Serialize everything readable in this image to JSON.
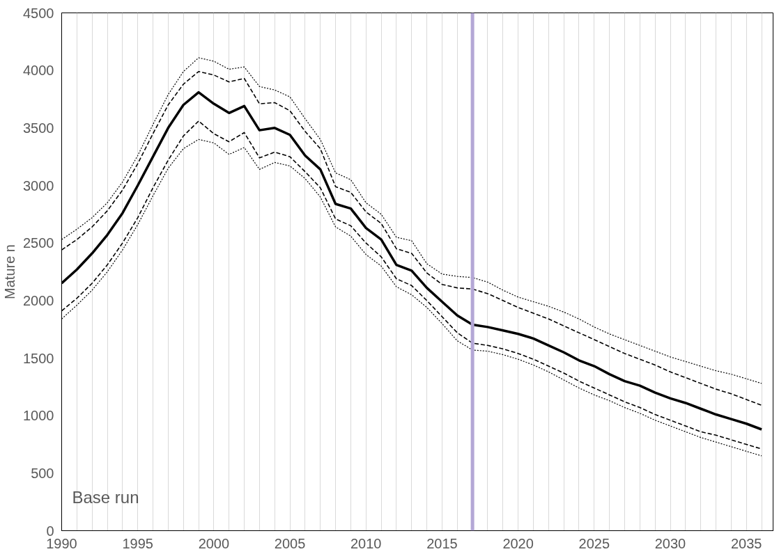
{
  "chart_data": {
    "type": "line",
    "ylabel": "Mature n",
    "annotations": [
      "Base run"
    ],
    "x": [
      1990,
      1991,
      1992,
      1993,
      1994,
      1995,
      1996,
      1997,
      1998,
      1999,
      2000,
      2001,
      2002,
      2003,
      2004,
      2005,
      2006,
      2007,
      2008,
      2009,
      2010,
      2011,
      2012,
      2013,
      2014,
      2015,
      2016,
      2017,
      2018,
      2019,
      2020,
      2021,
      2022,
      2023,
      2024,
      2025,
      2026,
      2027,
      2028,
      2029,
      2030,
      2031,
      2032,
      2033,
      2034,
      2035,
      2036
    ],
    "series": [
      {
        "color": "#000000",
        "line_style": "dotted",
        "values": [
          2530,
          2620,
          2720,
          2850,
          3030,
          3260,
          3530,
          3790,
          3990,
          4110,
          4080,
          4010,
          4030,
          3860,
          3830,
          3770,
          3580,
          3400,
          3110,
          3050,
          2850,
          2750,
          2550,
          2520,
          2320,
          2230,
          2210,
          2200,
          2160,
          2090,
          2030,
          1990,
          1950,
          1900,
          1840,
          1770,
          1710,
          1660,
          1610,
          1560,
          1510,
          1470,
          1430,
          1390,
          1360,
          1320,
          1280
        ]
      },
      {
        "color": "#000000",
        "line_style": "dashed",
        "values": [
          2440,
          2530,
          2640,
          2780,
          2960,
          3190,
          3450,
          3700,
          3880,
          3990,
          3960,
          3900,
          3930,
          3710,
          3720,
          3650,
          3470,
          3320,
          2990,
          2940,
          2770,
          2670,
          2450,
          2410,
          2240,
          2140,
          2110,
          2100,
          2060,
          2000,
          1940,
          1890,
          1840,
          1780,
          1720,
          1660,
          1600,
          1540,
          1490,
          1440,
          1380,
          1330,
          1280,
          1230,
          1190,
          1140,
          1090
        ]
      },
      {
        "color": "#000000",
        "line_style": "solid",
        "values": [
          2150,
          2270,
          2410,
          2570,
          2760,
          3000,
          3250,
          3500,
          3700,
          3810,
          3710,
          3630,
          3690,
          3480,
          3500,
          3440,
          3260,
          3140,
          2840,
          2800,
          2630,
          2530,
          2310,
          2260,
          2110,
          1990,
          1870,
          1790,
          1770,
          1740,
          1710,
          1670,
          1610,
          1550,
          1480,
          1430,
          1360,
          1300,
          1260,
          1200,
          1150,
          1110,
          1060,
          1010,
          970,
          930,
          880
        ]
      },
      {
        "color": "#000000",
        "line_style": "dashed",
        "values": [
          1910,
          2020,
          2150,
          2310,
          2500,
          2720,
          2980,
          3220,
          3430,
          3560,
          3450,
          3380,
          3460,
          3240,
          3290,
          3250,
          3120,
          2980,
          2710,
          2650,
          2500,
          2380,
          2190,
          2130,
          2000,
          1860,
          1720,
          1630,
          1610,
          1580,
          1540,
          1490,
          1430,
          1370,
          1300,
          1240,
          1180,
          1120,
          1070,
          1010,
          960,
          910,
          860,
          830,
          790,
          750,
          710
        ]
      },
      {
        "color": "#000000",
        "line_style": "dotted",
        "values": [
          1840,
          1960,
          2090,
          2250,
          2440,
          2660,
          2910,
          3150,
          3320,
          3400,
          3370,
          3270,
          3330,
          3140,
          3200,
          3170,
          3060,
          2900,
          2640,
          2560,
          2400,
          2300,
          2120,
          2050,
          1940,
          1800,
          1650,
          1570,
          1560,
          1530,
          1490,
          1440,
          1380,
          1310,
          1240,
          1180,
          1130,
          1070,
          1020,
          960,
          910,
          860,
          810,
          770,
          730,
          690,
          650
        ]
      }
    ],
    "ref_lines": [
      {
        "axis": "x",
        "value": 2017,
        "color": "#b4a7d6"
      }
    ],
    "xlim": [
      1990,
      2036.8
    ],
    "ylim": [
      0,
      4500
    ],
    "xticks": [
      1990,
      {
        "value": 1991,
        "label": null
      },
      {
        "value": 1992,
        "label": null
      },
      {
        "value": 1993,
        "label": null
      },
      {
        "value": 1994,
        "label": null
      },
      1995,
      {
        "value": 1996,
        "label": null
      },
      {
        "value": 1997,
        "label": null
      },
      {
        "value": 1998,
        "label": null
      },
      {
        "value": 1999,
        "label": null
      },
      2000,
      {
        "value": 2001,
        "label": null
      },
      {
        "value": 2002,
        "label": null
      },
      {
        "value": 2003,
        "label": null
      },
      {
        "value": 2004,
        "label": null
      },
      2005,
      {
        "value": 2006,
        "label": null
      },
      {
        "value": 2007,
        "label": null
      },
      {
        "value": 2008,
        "label": null
      },
      {
        "value": 2009,
        "label": null
      },
      2010,
      {
        "value": 2011,
        "label": null
      },
      {
        "value": 2012,
        "label": null
      },
      {
        "value": 2013,
        "label": null
      },
      {
        "value": 2014,
        "label": null
      },
      2015,
      {
        "value": 2016,
        "label": null
      },
      {
        "value": 2017,
        "label": null
      },
      {
        "value": 2018,
        "label": null
      },
      {
        "value": 2019,
        "label": null
      },
      2020,
      {
        "value": 2021,
        "label": null
      },
      {
        "value": 2022,
        "label": null
      },
      {
        "value": 2023,
        "label": null
      },
      {
        "value": 2024,
        "label": null
      },
      2025,
      {
        "value": 2026,
        "label": null
      },
      {
        "value": 2027,
        "label": null
      },
      {
        "value": 2028,
        "label": null
      },
      {
        "value": 2029,
        "label": null
      },
      2030,
      {
        "value": 2031,
        "label": null
      },
      {
        "value": 2032,
        "label": null
      },
      {
        "value": 2033,
        "label": null
      },
      {
        "value": 2034,
        "label": null
      },
      2035,
      {
        "value": 2036,
        "label": null
      }
    ],
    "yticks": [
      0,
      500,
      1000,
      1500,
      2000,
      2500,
      3000,
      3500,
      4000,
      4500
    ],
    "grid": "x",
    "marker": "none"
  }
}
